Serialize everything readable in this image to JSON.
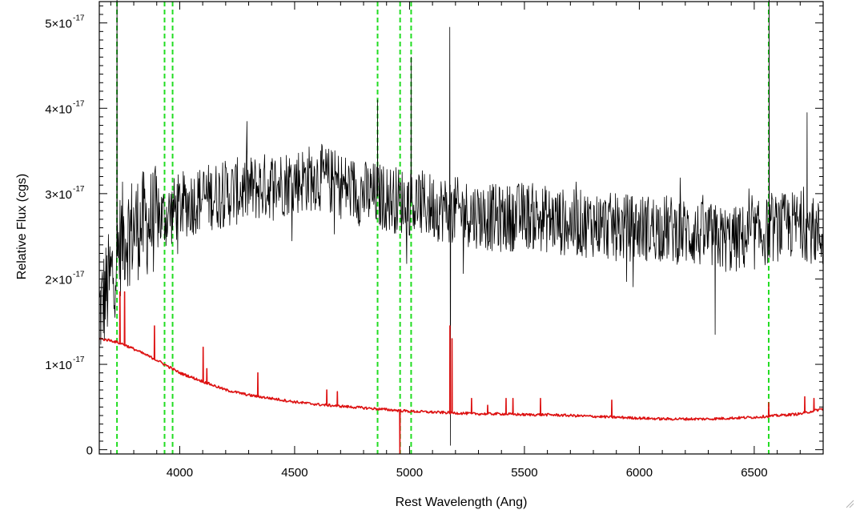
{
  "chart_data": {
    "type": "line",
    "title": "",
    "xlabel": "Rest Wavelength (Ang)",
    "ylabel": "Relative Flux (cgs)",
    "xlim": [
      3650,
      6800
    ],
    "ylim": [
      -5e-19,
      5.25e-17
    ],
    "x_ticks": [
      {
        "value": 4000,
        "label": "4000"
      },
      {
        "value": 4500,
        "label": "4500"
      },
      {
        "value": 5000,
        "label": "5000"
      },
      {
        "value": 5500,
        "label": "5500"
      },
      {
        "value": 6000,
        "label": "6000"
      },
      {
        "value": 6500,
        "label": "6500"
      }
    ],
    "y_ticks": [
      {
        "value": 0,
        "mantissa": "0",
        "exponent": ""
      },
      {
        "value": 1e-17,
        "mantissa": "1×10",
        "exponent": "-17"
      },
      {
        "value": 2e-17,
        "mantissa": "2×10",
        "exponent": "-17"
      },
      {
        "value": 3e-17,
        "mantissa": "3×10",
        "exponent": "-17"
      },
      {
        "value": 4e-17,
        "mantissa": "4×10",
        "exponent": "-17"
      },
      {
        "value": 5e-17,
        "mantissa": "5×10",
        "exponent": "-17"
      }
    ],
    "grid": false,
    "vertical_lines": {
      "color": "#22dd22",
      "style": "dashed",
      "x": [
        3727,
        3934,
        3969,
        4861,
        4959,
        5007,
        6563
      ]
    },
    "series": [
      {
        "color": "#000000",
        "style": "noisy",
        "x": [
          3650,
          3700,
          3750,
          3800,
          3850,
          3900,
          3950,
          4000,
          4100,
          4200,
          4300,
          4400,
          4500,
          4600,
          4700,
          4800,
          4900,
          5000,
          5100,
          5200,
          5300,
          5400,
          5500,
          5600,
          5700,
          5800,
          5900,
          6000,
          6100,
          6200,
          6300,
          6400,
          6500,
          6600,
          6700,
          6800
        ],
        "y": [
          1.6e-17,
          2e-17,
          2.5e-17,
          2.6e-17,
          2.65e-17,
          2.7e-17,
          2.75e-17,
          2.85e-17,
          2.95e-17,
          3e-17,
          3.05e-17,
          3.1e-17,
          3.15e-17,
          3.2e-17,
          3.1e-17,
          3e-17,
          2.95e-17,
          2.9e-17,
          2.85e-17,
          2.8e-17,
          2.75e-17,
          2.7e-17,
          2.75e-17,
          2.7e-17,
          2.65e-17,
          2.65e-17,
          2.6e-17,
          2.6e-17,
          2.6e-17,
          2.55e-17,
          2.5e-17,
          2.45e-17,
          2.5e-17,
          2.6e-17,
          2.65e-17,
          2.5e-17
        ],
        "noise": 4e-18,
        "spikes": [
          {
            "x": 3727,
            "y": 5.5e-17
          },
          {
            "x": 4861,
            "y": 4.1e-17
          },
          {
            "x": 5007,
            "y": 4.6e-17
          },
          {
            "x": 5175,
            "y": 4.95e-17
          },
          {
            "x": 5178,
            "y": 5e-19
          },
          {
            "x": 6565,
            "y": 5.5e-17
          },
          {
            "x": 6330,
            "y": 1.35e-17
          },
          {
            "x": 6730,
            "y": 3.95e-17
          }
        ]
      },
      {
        "color": "#dd1111",
        "style": "smooth",
        "x": [
          3650,
          3700,
          3750,
          3800,
          3900,
          4000,
          4100,
          4200,
          4300,
          4400,
          4500,
          4600,
          4700,
          4800,
          4900,
          5000,
          5100,
          5200,
          5300,
          5400,
          5500,
          5600,
          5700,
          5800,
          5900,
          6000,
          6100,
          6200,
          6300,
          6400,
          6500,
          6600,
          6700,
          6800
        ],
        "y": [
          1.3e-17,
          1.28e-17,
          1.24e-17,
          1.18e-17,
          1.05e-17,
          9e-18,
          8e-18,
          7e-18,
          6.4e-18,
          6e-18,
          5.6e-18,
          5.3e-18,
          5.1e-18,
          4.9e-18,
          4.7e-18,
          4.5e-18,
          4.4e-18,
          4.3e-18,
          4.2e-18,
          4.2e-18,
          4.1e-18,
          4.1e-18,
          4e-18,
          3.9e-18,
          3.8e-18,
          3.7e-18,
          3.6e-18,
          3.6e-18,
          3.6e-18,
          3.7e-18,
          3.8e-18,
          4e-18,
          4.2e-18,
          4.8e-18
        ],
        "spikes": [
          {
            "x": 3740,
            "y": 1.85e-17
          },
          {
            "x": 3760,
            "y": 1.85e-17
          },
          {
            "x": 3890,
            "y": 1.45e-17
          },
          {
            "x": 4102,
            "y": 1.2e-17
          },
          {
            "x": 4118,
            "y": 9.5e-18
          },
          {
            "x": 4340,
            "y": 9e-18
          },
          {
            "x": 4640,
            "y": 7e-18
          },
          {
            "x": 4686,
            "y": 6.8e-18
          },
          {
            "x": 4958,
            "y": -5e-19
          },
          {
            "x": 5176,
            "y": 1.45e-17
          },
          {
            "x": 5185,
            "y": 1.3e-17
          },
          {
            "x": 5270,
            "y": 6e-18
          },
          {
            "x": 5340,
            "y": 5.2e-18
          },
          {
            "x": 5420,
            "y": 6e-18
          },
          {
            "x": 5450,
            "y": 6e-18
          },
          {
            "x": 5570,
            "y": 6e-18
          },
          {
            "x": 5880,
            "y": 5.8e-18
          },
          {
            "x": 6563,
            "y": 5.5e-18
          },
          {
            "x": 6720,
            "y": 6.2e-18
          },
          {
            "x": 6760,
            "y": 6e-18
          }
        ]
      }
    ]
  }
}
